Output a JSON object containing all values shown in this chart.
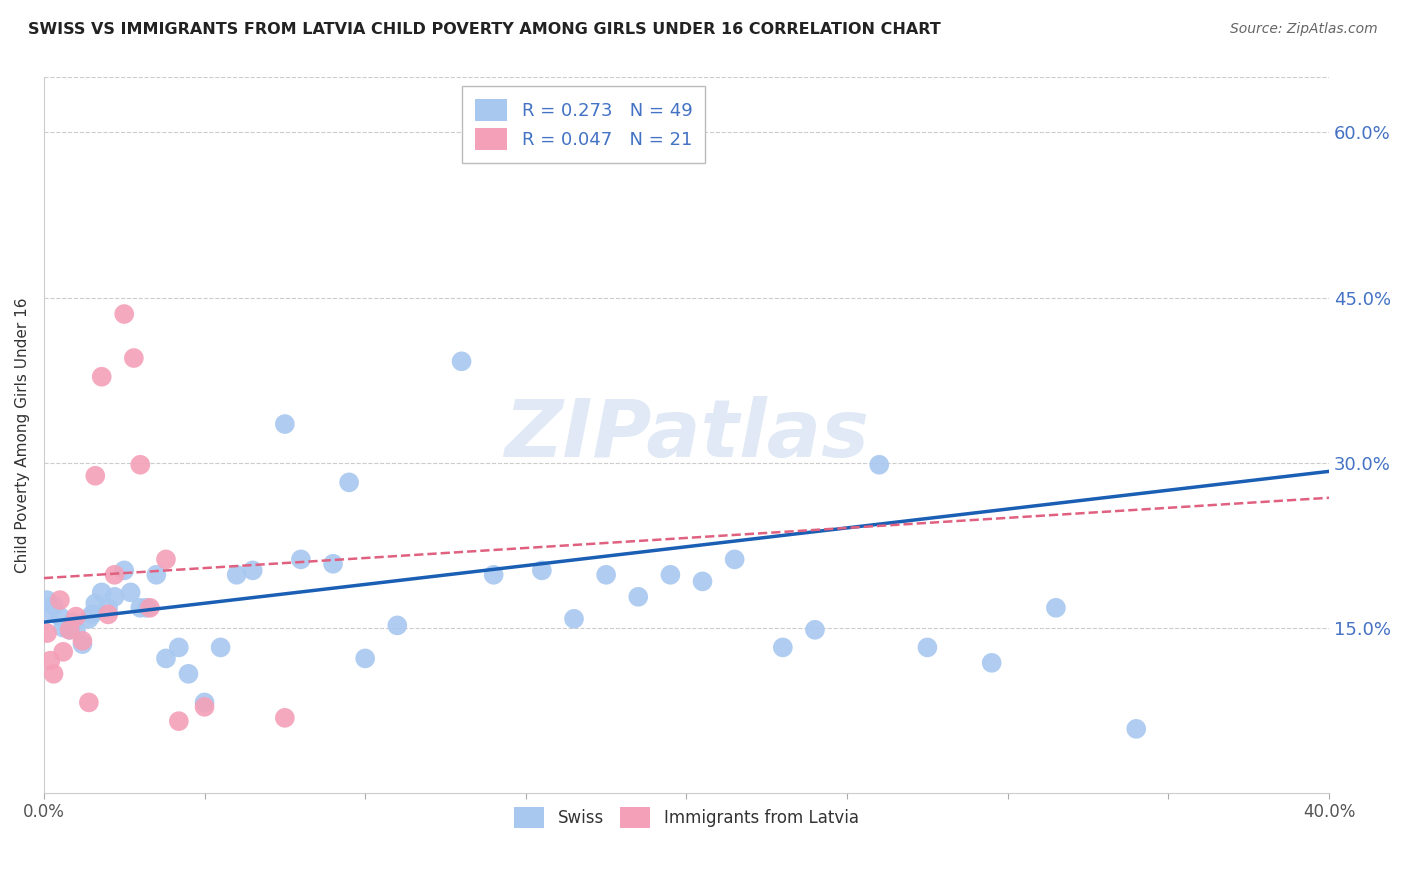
{
  "title": "SWISS VS IMMIGRANTS FROM LATVIA CHILD POVERTY AMONG GIRLS UNDER 16 CORRELATION CHART",
  "source": "Source: ZipAtlas.com",
  "ylabel": "Child Poverty Among Girls Under 16",
  "xlim": [
    0.0,
    0.4
  ],
  "ylim": [
    0.0,
    0.65
  ],
  "ytick_right_labels": [
    "60.0%",
    "45.0%",
    "30.0%",
    "15.0%"
  ],
  "ytick_right_values": [
    0.6,
    0.45,
    0.3,
    0.15
  ],
  "grid_values": [
    0.6,
    0.45,
    0.3,
    0.15
  ],
  "swiss_color": "#a8c8f0",
  "latvia_color": "#f4a0b8",
  "swiss_line_color": "#1a5fb4",
  "latvia_line_color": "#e06080",
  "watermark": "ZIPatlas",
  "legend_swiss_R": "0.273",
  "legend_swiss_N": "49",
  "legend_latvia_R": "0.047",
  "legend_latvia_N": "21",
  "swiss_x": [
    0.001,
    0.002,
    0.003,
    0.005,
    0.006,
    0.008,
    0.009,
    0.01,
    0.012,
    0.014,
    0.015,
    0.016,
    0.018,
    0.02,
    0.022,
    0.025,
    0.027,
    0.03,
    0.032,
    0.035,
    0.038,
    0.042,
    0.045,
    0.05,
    0.055,
    0.06,
    0.065,
    0.075,
    0.08,
    0.09,
    0.095,
    0.1,
    0.11,
    0.13,
    0.14,
    0.155,
    0.165,
    0.175,
    0.185,
    0.195,
    0.205,
    0.215,
    0.23,
    0.24,
    0.26,
    0.275,
    0.295,
    0.315,
    0.34
  ],
  "swiss_y": [
    0.175,
    0.165,
    0.17,
    0.16,
    0.15,
    0.148,
    0.155,
    0.148,
    0.135,
    0.158,
    0.162,
    0.172,
    0.182,
    0.168,
    0.178,
    0.202,
    0.182,
    0.168,
    0.168,
    0.198,
    0.122,
    0.132,
    0.108,
    0.082,
    0.132,
    0.198,
    0.202,
    0.335,
    0.212,
    0.208,
    0.282,
    0.122,
    0.152,
    0.392,
    0.198,
    0.202,
    0.158,
    0.198,
    0.178,
    0.198,
    0.192,
    0.212,
    0.132,
    0.148,
    0.298,
    0.132,
    0.118,
    0.168,
    0.058
  ],
  "latvia_x": [
    0.001,
    0.002,
    0.003,
    0.005,
    0.006,
    0.008,
    0.01,
    0.012,
    0.014,
    0.016,
    0.018,
    0.02,
    0.022,
    0.025,
    0.028,
    0.03,
    0.033,
    0.038,
    0.042,
    0.05,
    0.075
  ],
  "latvia_y": [
    0.145,
    0.12,
    0.108,
    0.175,
    0.128,
    0.148,
    0.16,
    0.138,
    0.082,
    0.288,
    0.378,
    0.162,
    0.198,
    0.435,
    0.395,
    0.298,
    0.168,
    0.212,
    0.065,
    0.078,
    0.068
  ]
}
